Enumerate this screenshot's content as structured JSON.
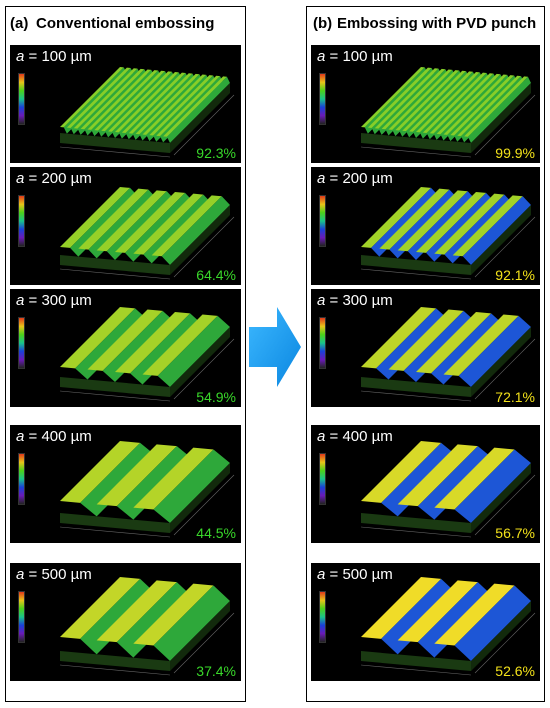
{
  "left_column": {
    "tag": "(a)",
    "title": "Conventional embossing",
    "panels": [
      {
        "a_label": "a",
        "a_value": " = 100 µm",
        "percent": "92.3%"
      },
      {
        "a_label": "a",
        "a_value": " = 200 µm",
        "percent": "64.4%"
      },
      {
        "a_label": "a",
        "a_value": " = 300 µm",
        "percent": "54.9%"
      },
      {
        "a_label": "a",
        "a_value": " = 400 µm",
        "percent": "44.5%"
      },
      {
        "a_label": "a",
        "a_value": " = 500 µm",
        "percent": "37.4%"
      }
    ]
  },
  "right_column": {
    "tag": "(b)",
    "title": "Embossing with PVD punch",
    "panels": [
      {
        "a_label": "a",
        "a_value": " = 100 µm",
        "percent": "99.9%"
      },
      {
        "a_label": "a",
        "a_value": " = 200 µm",
        "percent": "92.1%"
      },
      {
        "a_label": "a",
        "a_value": " = 300 µm",
        "percent": "72.1%"
      },
      {
        "a_label": "a",
        "a_value": " = 400 µm",
        "percent": "56.7%"
      },
      {
        "a_label": "a",
        "a_value": " = 500 µm",
        "percent": "52.6%"
      }
    ]
  },
  "colors": {
    "arrow": "#1e9cf0",
    "percent_left": "#39d82a",
    "percent_right": "#f3e21a"
  },
  "icons": {
    "transition": "arrow-right-icon"
  }
}
